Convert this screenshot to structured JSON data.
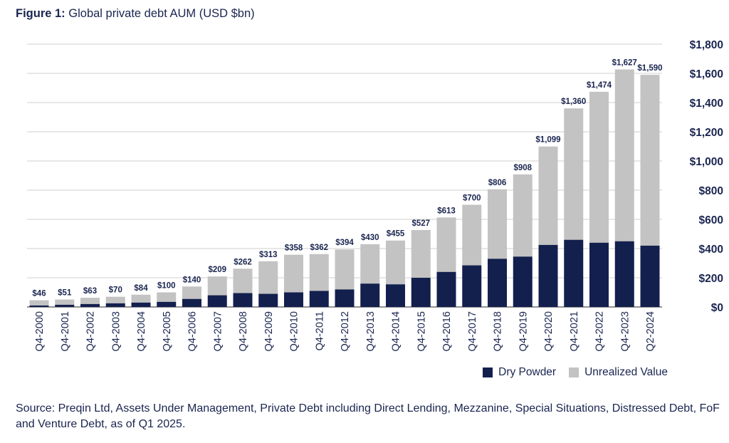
{
  "title": {
    "prefix": "Figure 1:",
    "text": "Global private debt AUM (USD $bn)"
  },
  "legend": [
    {
      "label": "Dry Powder",
      "color": "#13204e"
    },
    {
      "label": "Unrealized Value",
      "color": "#c3c3c3"
    }
  ],
  "source": "Source: Preqin Ltd, Assets Under Management, Private Debt including Direct Lending, Mezzanine, Special Situations, Distressed Debt, FoF and Venture Debt, as of Q1 2025.",
  "chart_data": {
    "type": "bar",
    "stacked": true,
    "categories": [
      "Q4-2000",
      "Q4-2001",
      "Q4-2002",
      "Q4-2003",
      "Q4-2004",
      "Q4-2005",
      "Q4-2006",
      "Q4-2007",
      "Q4-2008",
      "Q4-2009",
      "Q4-2010",
      "Q4-2011",
      "Q4-2012",
      "Q4-2013",
      "Q4-2014",
      "Q4-2015",
      "Q4-2016",
      "Q4-2017",
      "Q4-2018",
      "Q4-2019",
      "Q4-2020",
      "Q4-2021",
      "Q4-2022",
      "Q4-2023",
      "Q2-2024"
    ],
    "series": [
      {
        "name": "Dry Powder",
        "color": "#13204e",
        "values": [
          10,
          15,
          20,
          25,
          30,
          35,
          55,
          80,
          95,
          90,
          100,
          110,
          120,
          160,
          155,
          200,
          240,
          285,
          330,
          345,
          425,
          460,
          440,
          450,
          420
        ]
      },
      {
        "name": "Unrealized Value",
        "color": "#c3c3c3",
        "values": [
          36,
          36,
          43,
          45,
          54,
          65,
          85,
          129,
          167,
          223,
          258,
          252,
          274,
          270,
          300,
          327,
          373,
          415,
          476,
          563,
          674,
          900,
          1034,
          1177,
          1170
        ]
      }
    ],
    "totals": [
      46,
      51,
      63,
      70,
      84,
      100,
      140,
      209,
      262,
      313,
      358,
      362,
      394,
      430,
      455,
      527,
      613,
      700,
      806,
      908,
      1099,
      1360,
      1474,
      1627,
      1590
    ],
    "total_labels": [
      "$46",
      "$51",
      "$63",
      "$70",
      "$84",
      "$100",
      "$140",
      "$209",
      "$262",
      "$313",
      "$358",
      "$362",
      "$394",
      "$430",
      "$455",
      "$527",
      "$613",
      "$700",
      "$806",
      "$908",
      "$1,099",
      "$1,360",
      "$1,474",
      "$1,627",
      "$1,590"
    ],
    "ylim": [
      0,
      1800
    ],
    "yticks": [
      0,
      200,
      400,
      600,
      800,
      1000,
      1200,
      1400,
      1600,
      1800
    ],
    "ytick_labels": [
      "$0",
      "$200",
      "$400",
      "$600",
      "$800",
      "$1,000",
      "$1,200",
      "$1,400",
      "$1,600",
      "$1,800"
    ],
    "yaxis_position": "right",
    "grid": true,
    "legend_position": "bottom-right"
  }
}
